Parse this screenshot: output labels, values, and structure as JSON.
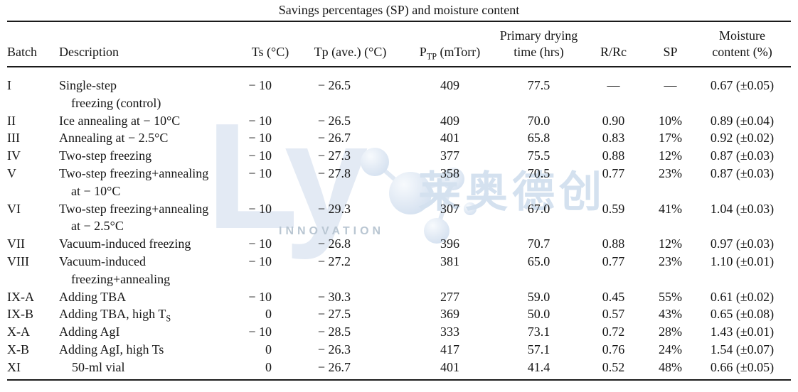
{
  "title": "Savings percentages (SP) and moisture content",
  "watermark": {
    "logo": "Ly",
    "chinese": "莱奥德创",
    "innovation": "INNOVATION",
    "logo_color": "#e3eaf4",
    "accent_color": "#ccdbed"
  },
  "table": {
    "headers": {
      "batch": "Batch",
      "description": "Description",
      "ts": "Ts (°C)",
      "tp": "Tp (ave.) (°C)",
      "ptp_main": "P",
      "ptp_sub": "TP",
      "ptp_unit": " (mTorr)",
      "drying_line1": "Primary drying",
      "drying_line2": "time (hrs)",
      "rrc": "R/Rc",
      "sp": "SP",
      "moisture_line1": "Moisture",
      "moisture_line2": "content (%)"
    },
    "rows": [
      {
        "batch": "I",
        "desc": "Single-step",
        "desc2": "freezing (control)",
        "ts": "− 10",
        "tp": "− 26.5",
        "ptp": "409",
        "dry": "77.5",
        "rrc": "—",
        "sp": "—",
        "mc": "0.67 (±0.05)"
      },
      {
        "batch": "II",
        "desc": "Ice annealing at − 10°C",
        "ts": "− 10",
        "tp": "− 26.5",
        "ptp": "409",
        "dry": "70.0",
        "rrc": "0.90",
        "sp": "10%",
        "mc": "0.89 (±0.04)"
      },
      {
        "batch": "III",
        "desc": "Annealing at − 2.5°C",
        "ts": "− 10",
        "tp": "− 26.7",
        "ptp": "401",
        "dry": "65.8",
        "rrc": "0.83",
        "sp": "17%",
        "mc": "0.92 (±0.02)"
      },
      {
        "batch": "IV",
        "desc": "Two-step freezing",
        "ts": "− 10",
        "tp": "− 27.3",
        "ptp": "377",
        "dry": "75.5",
        "rrc": "0.88",
        "sp": "12%",
        "mc": "0.87 (±0.03)"
      },
      {
        "batch": "V",
        "desc": "Two-step freezing+annealing",
        "desc2": "at − 10°C",
        "ts": "− 10",
        "tp": "− 27.8",
        "ptp": "358",
        "dry": "70.5",
        "rrc": "0.77",
        "sp": "23%",
        "mc": "0.87 (±0.03)"
      },
      {
        "batch": "VI",
        "desc": "Two-step freezing+annealing",
        "desc2": "at − 2.5°C",
        "ts": "− 10",
        "tp": "− 29.3",
        "ptp": "307",
        "dry": "67.0",
        "rrc": "0.59",
        "sp": "41%",
        "mc": "1.04 (±0.03)"
      },
      {
        "batch": "VII",
        "desc": "Vacuum-induced freezing",
        "ts": "− 10",
        "tp": "− 26.8",
        "ptp": "396",
        "dry": "70.7",
        "rrc": "0.88",
        "sp": "12%",
        "mc": "0.97 (±0.03)"
      },
      {
        "batch": "VIII",
        "desc": "Vacuum-induced",
        "desc2": "freezing+annealing",
        "ts": "− 10",
        "tp": "− 27.2",
        "ptp": "381",
        "dry": "65.0",
        "rrc": "0.77",
        "sp": "23%",
        "mc": "1.10 (±0.01)"
      },
      {
        "batch": "IX-A",
        "desc": "Adding TBA",
        "ts": "− 10",
        "tp": "− 30.3",
        "ptp": "277",
        "dry": "59.0",
        "rrc": "0.45",
        "sp": "55%",
        "mc": "0.61 (±0.02)"
      },
      {
        "batch": "IX-B",
        "desc": "Adding TBA, high T",
        "desc_sub": "S",
        "ts": "0",
        "tp": "− 27.5",
        "ptp": "369",
        "dry": "50.0",
        "rrc": "0.57",
        "sp": "43%",
        "mc": "0.65 (±0.08)"
      },
      {
        "batch": "X-A",
        "desc": "Adding AgI",
        "ts": "− 10",
        "tp": "− 28.5",
        "ptp": "333",
        "dry": "73.1",
        "rrc": "0.72",
        "sp": "28%",
        "mc": "1.43 (±0.01)"
      },
      {
        "batch": "X-B",
        "desc": "Adding AgI, high Ts",
        "ts": "0",
        "tp": "− 26.3",
        "ptp": "417",
        "dry": "57.1",
        "rrc": "0.76",
        "sp": "24%",
        "mc": "1.54 (±0.07)"
      },
      {
        "batch": "XI",
        "desc": "50-ml vial",
        "desc_indent": true,
        "ts": "0",
        "tp": "− 26.7",
        "ptp": "401",
        "dry": "41.4",
        "rrc": "0.52",
        "sp": "48%",
        "mc": "0.66 (±0.05)"
      }
    ]
  }
}
